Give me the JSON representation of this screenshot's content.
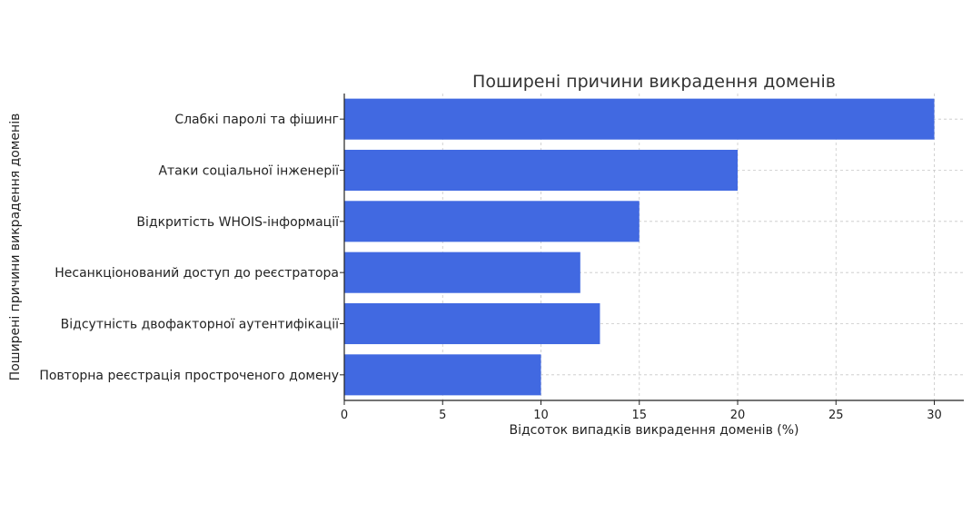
{
  "chart_data": {
    "type": "bar",
    "orientation": "horizontal",
    "title": "Поширені причини викрадення доменів",
    "xlabel": "Відсоток випадків викрадення доменів (%)",
    "ylabel": "Поширені причини викрадення доменів",
    "categories": [
      "Слабкі паролі та фішинг",
      "Атаки соціальної інженерії",
      "Відкритість WHOIS-інформації",
      "Несанкціонований доступ до реєстратора",
      "Відсутність двофакторної аутентифікації",
      "Повторна реєстрація простроченого домену"
    ],
    "values": [
      30,
      20,
      15,
      12,
      13,
      10
    ],
    "xlim": [
      0,
      31.5
    ],
    "xticks": [
      0,
      5,
      10,
      15,
      20,
      25,
      30
    ],
    "grid": true,
    "bar_color": "#4169e1"
  }
}
